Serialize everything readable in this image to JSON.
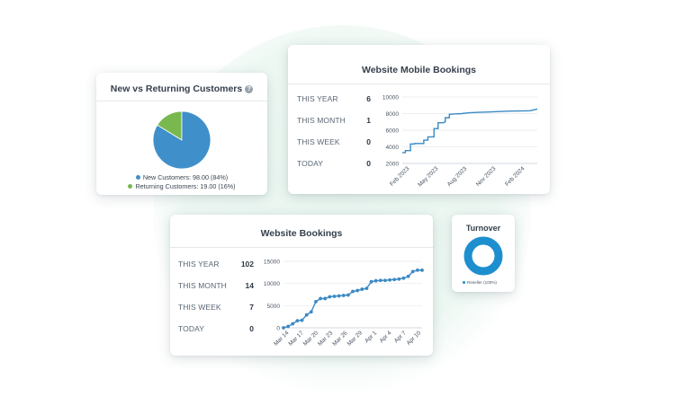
{
  "colors": {
    "blue": "#3f8fca",
    "green": "#79b84e",
    "line": "#3a8ac4",
    "turnover": "#1e8fce",
    "grid": "#e6e9ec"
  },
  "pie_card": {
    "title": "New vs Returning Customers",
    "help_icon": "?",
    "legend": [
      {
        "label": "New Customers: 98.00 (84%)",
        "color": "#3f8fca"
      },
      {
        "label": "Returning Customers: 19.00 (16%)",
        "color": "#79b84e"
      }
    ]
  },
  "mobile_card": {
    "title": "Website Mobile Bookings",
    "stats": [
      {
        "label": "THIS YEAR",
        "value": "6"
      },
      {
        "label": "THIS MONTH",
        "value": "1"
      },
      {
        "label": "THIS WEEK",
        "value": "0"
      },
      {
        "label": "TODAY",
        "value": "0"
      }
    ]
  },
  "web_card": {
    "title": "Website Bookings",
    "stats": [
      {
        "label": "THIS YEAR",
        "value": "102"
      },
      {
        "label": "THIS MONTH",
        "value": "14"
      },
      {
        "label": "THIS WEEK",
        "value": "7"
      },
      {
        "label": "TODAY",
        "value": "0"
      }
    ]
  },
  "turnover_card": {
    "title": "Turnover",
    "legend": "Reseller (100%)"
  },
  "chart_data": [
    {
      "type": "pie",
      "labels": [
        "New Customers",
        "Returning Customers"
      ],
      "values": [
        98,
        19
      ],
      "colors": [
        "#3f8fca",
        "#79b84e"
      ]
    },
    {
      "type": "line",
      "y_ticks": [
        "10000",
        "8000",
        "6000",
        "4000",
        "2000"
      ],
      "ylim": [
        2000,
        10000
      ],
      "x_ticks": [
        "Feb 2023",
        "May 2023",
        "Aug 2023",
        "Nov 2023",
        "Feb 2024"
      ],
      "x": [
        0,
        0.3,
        0.3,
        0.8,
        0.8,
        1.2,
        1.2,
        2.1,
        2.1,
        2.5,
        2.5,
        3.1,
        3.1,
        3.5,
        3.5,
        4.0,
        4.2,
        4.2,
        4.6,
        4.6,
        5.0,
        5.8,
        6.5,
        7.5,
        8.5,
        9.5,
        10.5,
        11.5,
        12.5,
        13.2
      ],
      "y": [
        3300,
        3300,
        3550,
        3550,
        4350,
        4350,
        4400,
        4400,
        4800,
        4800,
        5200,
        5200,
        6200,
        6200,
        6900,
        6900,
        7000,
        7500,
        7500,
        7900,
        7950,
        8000,
        8100,
        8150,
        8200,
        8250,
        8300,
        8320,
        8350,
        8550
      ],
      "grid": true
    },
    {
      "type": "line",
      "y_ticks": [
        "15000",
        "10000",
        "5000",
        "0"
      ],
      "ylim": [
        0,
        15000
      ],
      "x_ticks": [
        "Mar 14",
        "Mar 17",
        "Mar 20",
        "Mar 23",
        "Mar 26",
        "Mar 29",
        "Apr 1",
        "Apr 4",
        "Apr 7",
        "Apr 10"
      ],
      "x": [
        0,
        1,
        2,
        3,
        4,
        5,
        6,
        7,
        8,
        9,
        10,
        11,
        12,
        13,
        14,
        15,
        16,
        17,
        18,
        19,
        20,
        21,
        22,
        23,
        24,
        25,
        26,
        27,
        28,
        29,
        30
      ],
      "y": [
        0,
        300,
        900,
        1600,
        1700,
        2900,
        3600,
        5900,
        6600,
        6600,
        7000,
        7100,
        7200,
        7300,
        7400,
        8200,
        8400,
        8700,
        8900,
        10400,
        10600,
        10700,
        10700,
        10800,
        10900,
        11000,
        11200,
        11600,
        12700,
        13000,
        13000
      ],
      "grid": true,
      "markers": true
    },
    {
      "type": "pie",
      "labels": [
        "Reseller"
      ],
      "values": [
        100
      ],
      "colors": [
        "#1e8fce"
      ],
      "donut": true
    }
  ]
}
